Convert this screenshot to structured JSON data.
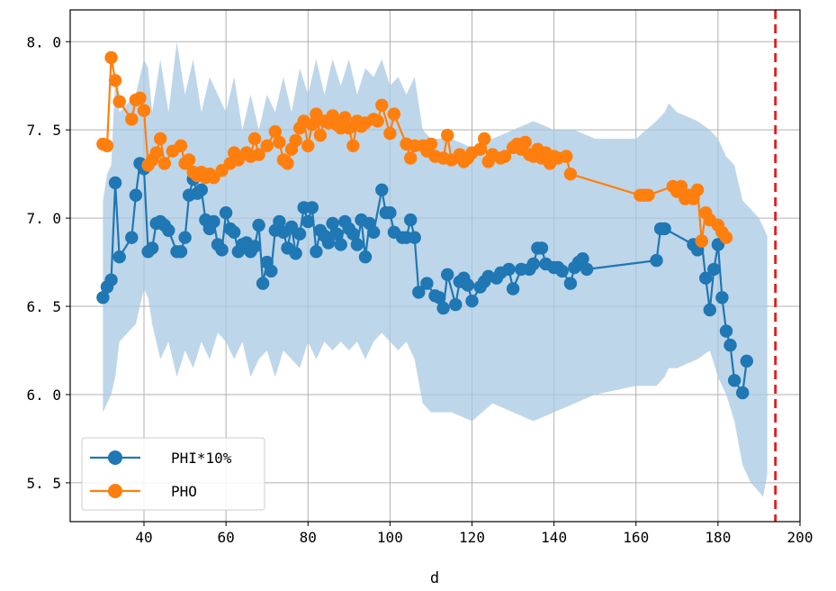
{
  "chart_data": {
    "type": "line",
    "title": "",
    "xlabel": "d",
    "ylabel": "",
    "xlim": [
      22,
      200
    ],
    "ylim": [
      5.28,
      8.18
    ],
    "xticks": [
      40,
      60,
      80,
      100,
      120,
      140,
      160,
      180,
      200
    ],
    "yticks": [
      5.5,
      6.0,
      6.5,
      7.0,
      7.5,
      8.0
    ],
    "ytick_labels": [
      "5. 5",
      "6. 0",
      "6. 5",
      "7. 0",
      "7. 5",
      "8. 0"
    ],
    "grid": true,
    "legend_position": "lower-left",
    "vline": {
      "x": 194,
      "color": "#e8191b",
      "style": "dashed"
    },
    "band": {
      "color": "#a8c8e1",
      "points": [
        [
          30,
          5.9,
          7.1
        ],
        [
          31,
          5.95,
          7.25
        ],
        [
          32,
          6.0,
          7.3
        ],
        [
          33,
          6.1,
          7.8
        ],
        [
          34,
          6.3,
          7.6
        ],
        [
          36,
          6.35,
          7.65
        ],
        [
          38,
          6.4,
          7.7
        ],
        [
          39,
          6.5,
          7.8
        ],
        [
          40,
          6.6,
          7.9
        ],
        [
          41,
          6.55,
          7.85
        ],
        [
          42,
          6.4,
          7.6
        ],
        [
          44,
          6.2,
          7.9
        ],
        [
          46,
          6.3,
          7.6
        ],
        [
          48,
          6.1,
          8.0
        ],
        [
          50,
          6.25,
          7.7
        ],
        [
          52,
          6.15,
          7.9
        ],
        [
          54,
          6.3,
          7.6
        ],
        [
          56,
          6.2,
          7.8
        ],
        [
          58,
          6.35,
          7.7
        ],
        [
          60,
          6.3,
          7.6
        ],
        [
          62,
          6.2,
          7.8
        ],
        [
          64,
          6.3,
          7.5
        ],
        [
          66,
          6.1,
          7.7
        ],
        [
          68,
          6.2,
          7.5
        ],
        [
          70,
          6.25,
          7.7
        ],
        [
          72,
          6.1,
          7.6
        ],
        [
          74,
          6.25,
          7.8
        ],
        [
          76,
          6.2,
          7.6
        ],
        [
          78,
          6.15,
          7.85
        ],
        [
          80,
          6.3,
          7.7
        ],
        [
          82,
          6.2,
          7.9
        ],
        [
          84,
          6.3,
          7.7
        ],
        [
          86,
          6.25,
          7.9
        ],
        [
          88,
          6.3,
          7.75
        ],
        [
          90,
          6.25,
          7.9
        ],
        [
          92,
          6.3,
          7.7
        ],
        [
          94,
          6.2,
          7.85
        ],
        [
          96,
          6.3,
          7.8
        ],
        [
          98,
          6.35,
          7.9
        ],
        [
          100,
          6.3,
          7.75
        ],
        [
          102,
          6.25,
          7.8
        ],
        [
          104,
          6.3,
          7.7
        ],
        [
          106,
          6.2,
          7.8
        ],
        [
          108,
          5.95,
          7.5
        ],
        [
          110,
          5.9,
          7.45
        ],
        [
          115,
          5.9,
          7.45
        ],
        [
          120,
          5.85,
          7.4
        ],
        [
          125,
          5.95,
          7.45
        ],
        [
          130,
          5.9,
          7.5
        ],
        [
          135,
          5.85,
          7.55
        ],
        [
          140,
          5.9,
          7.5
        ],
        [
          145,
          5.95,
          7.5
        ],
        [
          150,
          6.0,
          7.45
        ],
        [
          160,
          6.05,
          7.45
        ],
        [
          165,
          6.05,
          7.55
        ],
        [
          167,
          6.1,
          7.6
        ],
        [
          168,
          6.15,
          7.65
        ],
        [
          170,
          6.15,
          7.6
        ],
        [
          175,
          6.2,
          7.55
        ],
        [
          178,
          6.25,
          7.5
        ],
        [
          180,
          6.1,
          7.45
        ],
        [
          182,
          6.0,
          7.35
        ],
        [
          184,
          5.85,
          7.3
        ],
        [
          186,
          5.6,
          7.1
        ],
        [
          188,
          5.5,
          7.05
        ],
        [
          190,
          5.45,
          7.0
        ],
        [
          191,
          5.42,
          6.95
        ],
        [
          192,
          5.55,
          6.9
        ]
      ]
    },
    "series": [
      {
        "name": "PHI*10%",
        "color": "#1f77b4",
        "points": [
          [
            30,
            6.55
          ],
          [
            31,
            6.61
          ],
          [
            32,
            6.65
          ],
          [
            33,
            7.2
          ],
          [
            34,
            6.78
          ],
          [
            37,
            6.89
          ],
          [
            38,
            7.13
          ],
          [
            39,
            7.31
          ],
          [
            40,
            7.28
          ],
          [
            41,
            6.81
          ],
          [
            42,
            6.83
          ],
          [
            43,
            6.97
          ],
          [
            44,
            6.98
          ],
          [
            45,
            6.96
          ],
          [
            46,
            6.93
          ],
          [
            48,
            6.81
          ],
          [
            49,
            6.81
          ],
          [
            50,
            6.89
          ],
          [
            51,
            7.13
          ],
          [
            52,
            7.22
          ],
          [
            53,
            7.14
          ],
          [
            54,
            7.16
          ],
          [
            55,
            6.99
          ],
          [
            56,
            6.94
          ],
          [
            57,
            6.98
          ],
          [
            58,
            6.85
          ],
          [
            59,
            6.82
          ],
          [
            60,
            7.03
          ],
          [
            61,
            6.94
          ],
          [
            62,
            6.92
          ],
          [
            63,
            6.81
          ],
          [
            64,
            6.85
          ],
          [
            65,
            6.86
          ],
          [
            66,
            6.81
          ],
          [
            67,
            6.84
          ],
          [
            68,
            6.96
          ],
          [
            69,
            6.63
          ],
          [
            70,
            6.75
          ],
          [
            71,
            6.7
          ],
          [
            72,
            6.93
          ],
          [
            73,
            6.98
          ],
          [
            74,
            6.92
          ],
          [
            75,
            6.83
          ],
          [
            76,
            6.95
          ],
          [
            77,
            6.8
          ],
          [
            78,
            6.91
          ],
          [
            79,
            7.06
          ],
          [
            80,
            6.98
          ],
          [
            81,
            7.06
          ],
          [
            82,
            6.81
          ],
          [
            83,
            6.93
          ],
          [
            84,
            6.9
          ],
          [
            85,
            6.86
          ],
          [
            86,
            6.97
          ],
          [
            87,
            6.91
          ],
          [
            88,
            6.85
          ],
          [
            89,
            6.98
          ],
          [
            90,
            6.94
          ],
          [
            91,
            6.91
          ],
          [
            92,
            6.85
          ],
          [
            93,
            6.99
          ],
          [
            94,
            6.78
          ],
          [
            95,
            6.97
          ],
          [
            96,
            6.92
          ],
          [
            98,
            7.16
          ],
          [
            99,
            7.03
          ],
          [
            100,
            7.03
          ],
          [
            101,
            6.92
          ],
          [
            103,
            6.89
          ],
          [
            104,
            6.89
          ],
          [
            105,
            6.99
          ],
          [
            106,
            6.89
          ],
          [
            107,
            6.58
          ],
          [
            109,
            6.63
          ],
          [
            111,
            6.56
          ],
          [
            112,
            6.55
          ],
          [
            113,
            6.49
          ],
          [
            114,
            6.68
          ],
          [
            116,
            6.51
          ],
          [
            117,
            6.64
          ],
          [
            118,
            6.66
          ],
          [
            119,
            6.62
          ],
          [
            120,
            6.53
          ],
          [
            122,
            6.61
          ],
          [
            123,
            6.64
          ],
          [
            124,
            6.67
          ],
          [
            126,
            6.66
          ],
          [
            127,
            6.69
          ],
          [
            129,
            6.71
          ],
          [
            130,
            6.6
          ],
          [
            132,
            6.71
          ],
          [
            134,
            6.71
          ],
          [
            135,
            6.74
          ],
          [
            136,
            6.83
          ],
          [
            137,
            6.83
          ],
          [
            138,
            6.74
          ],
          [
            140,
            6.72
          ],
          [
            141,
            6.72
          ],
          [
            142,
            6.7
          ],
          [
            144,
            6.63
          ],
          [
            145,
            6.72
          ],
          [
            146,
            6.75
          ],
          [
            147,
            6.77
          ],
          [
            148,
            6.71
          ],
          [
            165,
            6.76
          ],
          [
            166,
            6.94
          ],
          [
            167,
            6.94
          ],
          [
            174,
            6.85
          ],
          [
            175,
            6.82
          ],
          [
            176,
            6.87
          ],
          [
            177,
            6.66
          ],
          [
            178,
            6.48
          ],
          [
            179,
            6.71
          ],
          [
            180,
            6.85
          ],
          [
            181,
            6.55
          ],
          [
            182,
            6.36
          ],
          [
            183,
            6.28
          ],
          [
            184,
            6.08
          ],
          [
            186,
            6.01
          ],
          [
            187,
            6.19
          ]
        ]
      },
      {
        "name": "PHO",
        "color": "#ff7f0e",
        "points": [
          [
            30,
            7.42
          ],
          [
            31,
            7.41
          ],
          [
            32,
            7.91
          ],
          [
            33,
            7.78
          ],
          [
            34,
            7.66
          ],
          [
            37,
            7.56
          ],
          [
            38,
            7.67
          ],
          [
            39,
            7.68
          ],
          [
            40,
            7.61
          ],
          [
            41,
            7.3
          ],
          [
            42,
            7.33
          ],
          [
            43,
            7.37
          ],
          [
            44,
            7.45
          ],
          [
            45,
            7.31
          ],
          [
            47,
            7.38
          ],
          [
            49,
            7.41
          ],
          [
            50,
            7.31
          ],
          [
            51,
            7.33
          ],
          [
            52,
            7.26
          ],
          [
            53,
            7.24
          ],
          [
            54,
            7.26
          ],
          [
            55,
            7.23
          ],
          [
            56,
            7.25
          ],
          [
            57,
            7.23
          ],
          [
            59,
            7.27
          ],
          [
            61,
            7.31
          ],
          [
            62,
            7.37
          ],
          [
            63,
            7.33
          ],
          [
            65,
            7.37
          ],
          [
            66,
            7.35
          ],
          [
            67,
            7.45
          ],
          [
            68,
            7.36
          ],
          [
            70,
            7.41
          ],
          [
            72,
            7.49
          ],
          [
            73,
            7.43
          ],
          [
            74,
            7.33
          ],
          [
            75,
            7.31
          ],
          [
            76,
            7.39
          ],
          [
            77,
            7.44
          ],
          [
            78,
            7.51
          ],
          [
            79,
            7.55
          ],
          [
            80,
            7.41
          ],
          [
            81,
            7.53
          ],
          [
            82,
            7.59
          ],
          [
            83,
            7.47
          ],
          [
            84,
            7.55
          ],
          [
            85,
            7.54
          ],
          [
            86,
            7.58
          ],
          [
            87,
            7.53
          ],
          [
            88,
            7.51
          ],
          [
            89,
            7.57
          ],
          [
            90,
            7.51
          ],
          [
            91,
            7.41
          ],
          [
            92,
            7.55
          ],
          [
            93,
            7.52
          ],
          [
            94,
            7.54
          ],
          [
            96,
            7.56
          ],
          [
            97,
            7.55
          ],
          [
            98,
            7.64
          ],
          [
            100,
            7.48
          ],
          [
            101,
            7.59
          ],
          [
            104,
            7.42
          ],
          [
            105,
            7.34
          ],
          [
            106,
            7.41
          ],
          [
            108,
            7.41
          ],
          [
            109,
            7.38
          ],
          [
            110,
            7.42
          ],
          [
            111,
            7.35
          ],
          [
            113,
            7.34
          ],
          [
            114,
            7.47
          ],
          [
            115,
            7.33
          ],
          [
            117,
            7.36
          ],
          [
            118,
            7.32
          ],
          [
            119,
            7.34
          ],
          [
            120,
            7.37
          ],
          [
            122,
            7.39
          ],
          [
            123,
            7.45
          ],
          [
            124,
            7.32
          ],
          [
            125,
            7.36
          ],
          [
            127,
            7.34
          ],
          [
            128,
            7.35
          ],
          [
            130,
            7.4
          ],
          [
            131,
            7.42
          ],
          [
            132,
            7.39
          ],
          [
            133,
            7.43
          ],
          [
            134,
            7.36
          ],
          [
            135,
            7.35
          ],
          [
            136,
            7.39
          ],
          [
            137,
            7.34
          ],
          [
            138,
            7.37
          ],
          [
            139,
            7.31
          ],
          [
            140,
            7.35
          ],
          [
            141,
            7.34
          ],
          [
            143,
            7.35
          ],
          [
            144,
            7.25
          ],
          [
            161,
            7.13
          ],
          [
            162,
            7.13
          ],
          [
            163,
            7.13
          ],
          [
            169,
            7.18
          ],
          [
            170,
            7.15
          ],
          [
            171,
            7.18
          ],
          [
            172,
            7.11
          ],
          [
            173,
            7.13
          ],
          [
            174,
            7.11
          ],
          [
            175,
            7.16
          ],
          [
            176,
            6.87
          ],
          [
            177,
            7.03
          ],
          [
            178,
            6.99
          ],
          [
            180,
            6.96
          ],
          [
            181,
            6.92
          ],
          [
            182,
            6.89
          ]
        ]
      }
    ]
  }
}
